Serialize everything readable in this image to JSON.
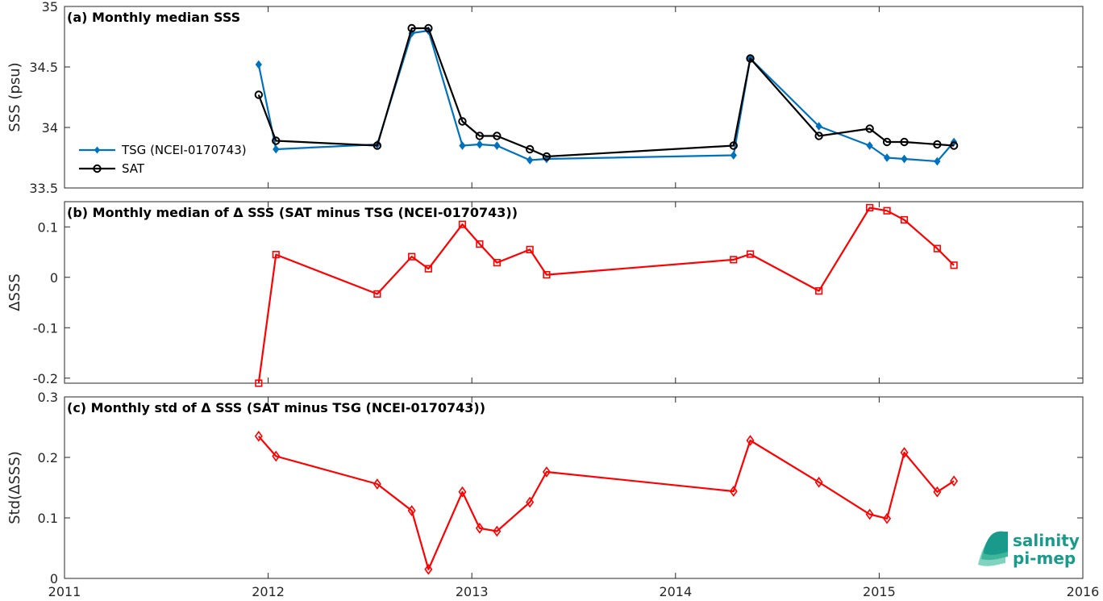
{
  "chart_data": [
    {
      "type": "line",
      "title": "(a) Monthly median SSS",
      "xlabel": "",
      "ylabel": "SSS (psu)",
      "xlim": [
        "2011-01-01",
        "2016-01-01"
      ],
      "ylim": [
        33.5,
        35
      ],
      "xticks": [
        "2011",
        "2012",
        "2013",
        "2014",
        "2015",
        "2016"
      ],
      "yticks": [
        "33.5",
        "34",
        "34.5",
        "35"
      ],
      "grid": true,
      "legend_position": "left",
      "series": [
        {
          "name": "TSG (NCEI-0170743)",
          "color": "#0072bd",
          "marker": "diamond",
          "x": [
            "2011-12-15",
            "2012-01-15",
            "2012-07-15",
            "2012-09-15",
            "2012-10-15",
            "2012-12-15",
            "2013-01-15",
            "2013-02-15",
            "2013-04-15",
            "2013-05-15",
            "2014-04-15",
            "2014-05-15",
            "2014-09-15",
            "2014-12-15",
            "2015-01-15",
            "2015-02-15",
            "2015-04-15",
            "2015-05-15"
          ],
          "values": [
            34.52,
            33.82,
            33.86,
            34.78,
            34.8,
            33.85,
            33.86,
            33.85,
            33.73,
            33.74,
            33.77,
            34.57,
            34.01,
            33.85,
            33.75,
            33.74,
            33.72,
            33.88
          ]
        },
        {
          "name": "SAT",
          "color": "#000000",
          "marker": "circle",
          "x": [
            "2011-12-15",
            "2012-01-15",
            "2012-07-15",
            "2012-09-15",
            "2012-10-15",
            "2012-12-15",
            "2013-01-15",
            "2013-02-15",
            "2013-04-15",
            "2013-05-15",
            "2014-04-15",
            "2014-05-15",
            "2014-09-15",
            "2014-12-15",
            "2015-01-15",
            "2015-02-15",
            "2015-04-15",
            "2015-05-15"
          ],
          "values": [
            34.27,
            33.89,
            33.85,
            34.82,
            34.82,
            34.05,
            33.93,
            33.93,
            33.82,
            33.76,
            33.85,
            34.57,
            33.93,
            33.99,
            33.88,
            33.88,
            33.86,
            33.85
          ]
        }
      ]
    },
    {
      "type": "line",
      "title": "(b) Monthly median of Δ SSS (SAT minus TSG (NCEI-0170743))",
      "xlabel": "",
      "ylabel": "ΔSSS",
      "xlim": [
        "2011-01-01",
        "2016-01-01"
      ],
      "ylim": [
        -0.21,
        0.15
      ],
      "xticks": [
        "2011",
        "2012",
        "2013",
        "2014",
        "2015",
        "2016"
      ],
      "yticks": [
        "-0.2",
        "-0.1",
        "0",
        "0.1"
      ],
      "grid": true,
      "series": [
        {
          "color": "#ff0000",
          "marker": "square",
          "x": [
            "2011-12-15",
            "2012-01-15",
            "2012-07-15",
            "2012-09-15",
            "2012-10-15",
            "2012-12-15",
            "2013-01-15",
            "2013-02-15",
            "2013-04-15",
            "2013-05-15",
            "2014-04-15",
            "2014-05-15",
            "2014-09-15",
            "2014-12-15",
            "2015-01-15",
            "2015-02-15",
            "2015-04-15",
            "2015-05-15"
          ],
          "values": [
            -0.21,
            0.045,
            -0.033,
            0.041,
            0.017,
            0.105,
            0.066,
            0.029,
            0.055,
            0.005,
            0.035,
            0.046,
            -0.027,
            0.138,
            0.132,
            0.114,
            0.057,
            0.024
          ]
        }
      ]
    },
    {
      "type": "line",
      "title": "(c) Monthly std of Δ SSS (SAT minus TSG (NCEI-0170743))",
      "xlabel": "",
      "ylabel": "Std(ΔSSS)",
      "xlim": [
        "2011-01-01",
        "2016-01-01"
      ],
      "ylim": [
        0,
        0.3
      ],
      "xticks": [
        "2011",
        "2012",
        "2013",
        "2014",
        "2015",
        "2016"
      ],
      "yticks": [
        "0",
        "0.1",
        "0.2",
        "0.3"
      ],
      "grid": true,
      "series": [
        {
          "color": "#ff0000",
          "marker": "diamond",
          "x": [
            "2011-12-15",
            "2012-01-15",
            "2012-07-15",
            "2012-09-15",
            "2012-10-15",
            "2012-12-15",
            "2013-01-15",
            "2013-02-15",
            "2013-04-15",
            "2013-05-15",
            "2014-04-15",
            "2014-05-15",
            "2014-09-15",
            "2014-12-15",
            "2015-01-15",
            "2015-02-15",
            "2015-04-15",
            "2015-05-15"
          ],
          "values": [
            0.235,
            0.202,
            0.156,
            0.112,
            0.015,
            0.143,
            0.083,
            0.078,
            0.126,
            0.176,
            0.144,
            0.228,
            0.159,
            0.106,
            0.099,
            0.208,
            0.143,
            0.161
          ]
        }
      ]
    }
  ],
  "logo": {
    "line1": "salinity",
    "line2": "pi-mep",
    "color": "#1a9a8a"
  }
}
